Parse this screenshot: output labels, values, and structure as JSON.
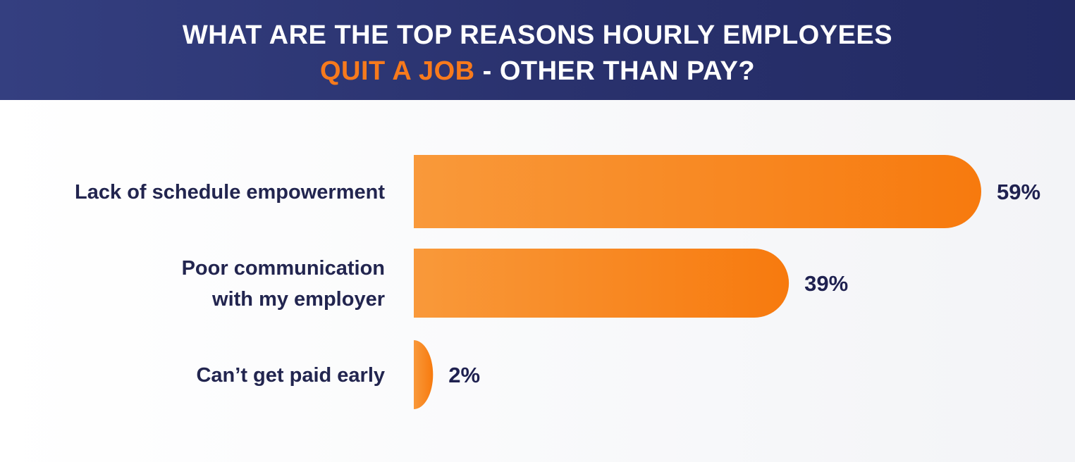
{
  "header": {
    "title_line1": "WHAT ARE THE TOP REASONS HOURLY EMPLOYEES",
    "title_accent": "QUIT A JOB",
    "title_rest": " - OTHER THAN PAY?"
  },
  "colors": {
    "header_bg": "#2a326e",
    "accent": "#f77a1c",
    "bar_start": "#f9993a",
    "bar_end": "#f77a0e",
    "text_dark": "#22254f"
  },
  "chart_data": {
    "type": "bar",
    "orientation": "horizontal",
    "categories": [
      [
        "Lack of schedule empowerment"
      ],
      [
        "Poor communication",
        "with my employer"
      ],
      [
        "Can’t get paid early"
      ]
    ],
    "values": [
      59,
      39,
      2
    ],
    "value_labels": [
      "59%",
      "39%",
      "2%"
    ],
    "unit": "%",
    "xlim": [
      0,
      59
    ],
    "grid": false,
    "legend": "none"
  }
}
